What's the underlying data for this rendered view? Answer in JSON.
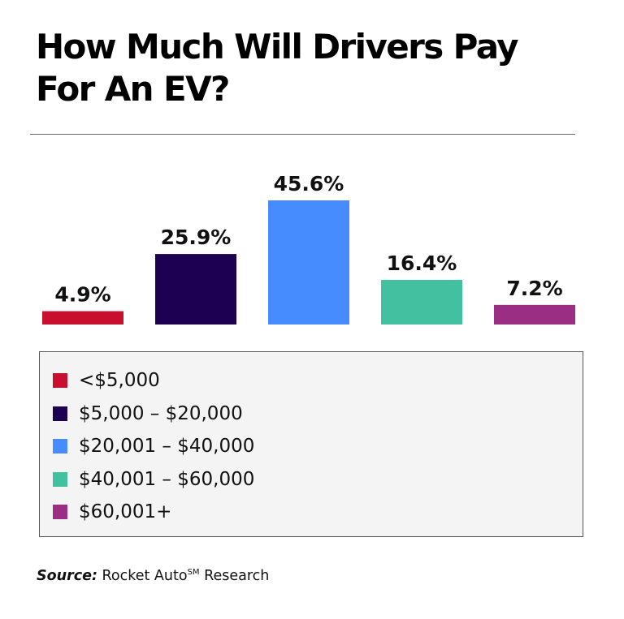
{
  "chart_data": {
    "type": "bar",
    "title": "How Much Will Drivers Pay For An EV?",
    "title_lines": [
      "How Much Will Drivers Pay",
      "For An EV?"
    ],
    "categories": [
      "<$5,000",
      "$5,000 – $20,000",
      "$20,001 – $40,000",
      "$40,001 – $60,000",
      "$60,001+"
    ],
    "values": [
      4.9,
      25.9,
      45.6,
      16.4,
      7.2
    ],
    "data_labels": [
      "4.9%",
      "25.9%",
      "45.6%",
      "16.4%",
      "7.2%"
    ],
    "colors": [
      "#c8102e",
      "#1e0052",
      "#468cff",
      "#43c0a0",
      "#9a2e82"
    ],
    "unit": "%",
    "xlabel": "",
    "ylabel": "",
    "ylim": [
      0,
      45.6
    ],
    "grid": false,
    "axes_visible": false,
    "legend_position": "bottom"
  },
  "source": {
    "label": "Source:",
    "text_before_sup": " Rocket Auto",
    "sup": "SM",
    "text_after_sup": " Research"
  }
}
